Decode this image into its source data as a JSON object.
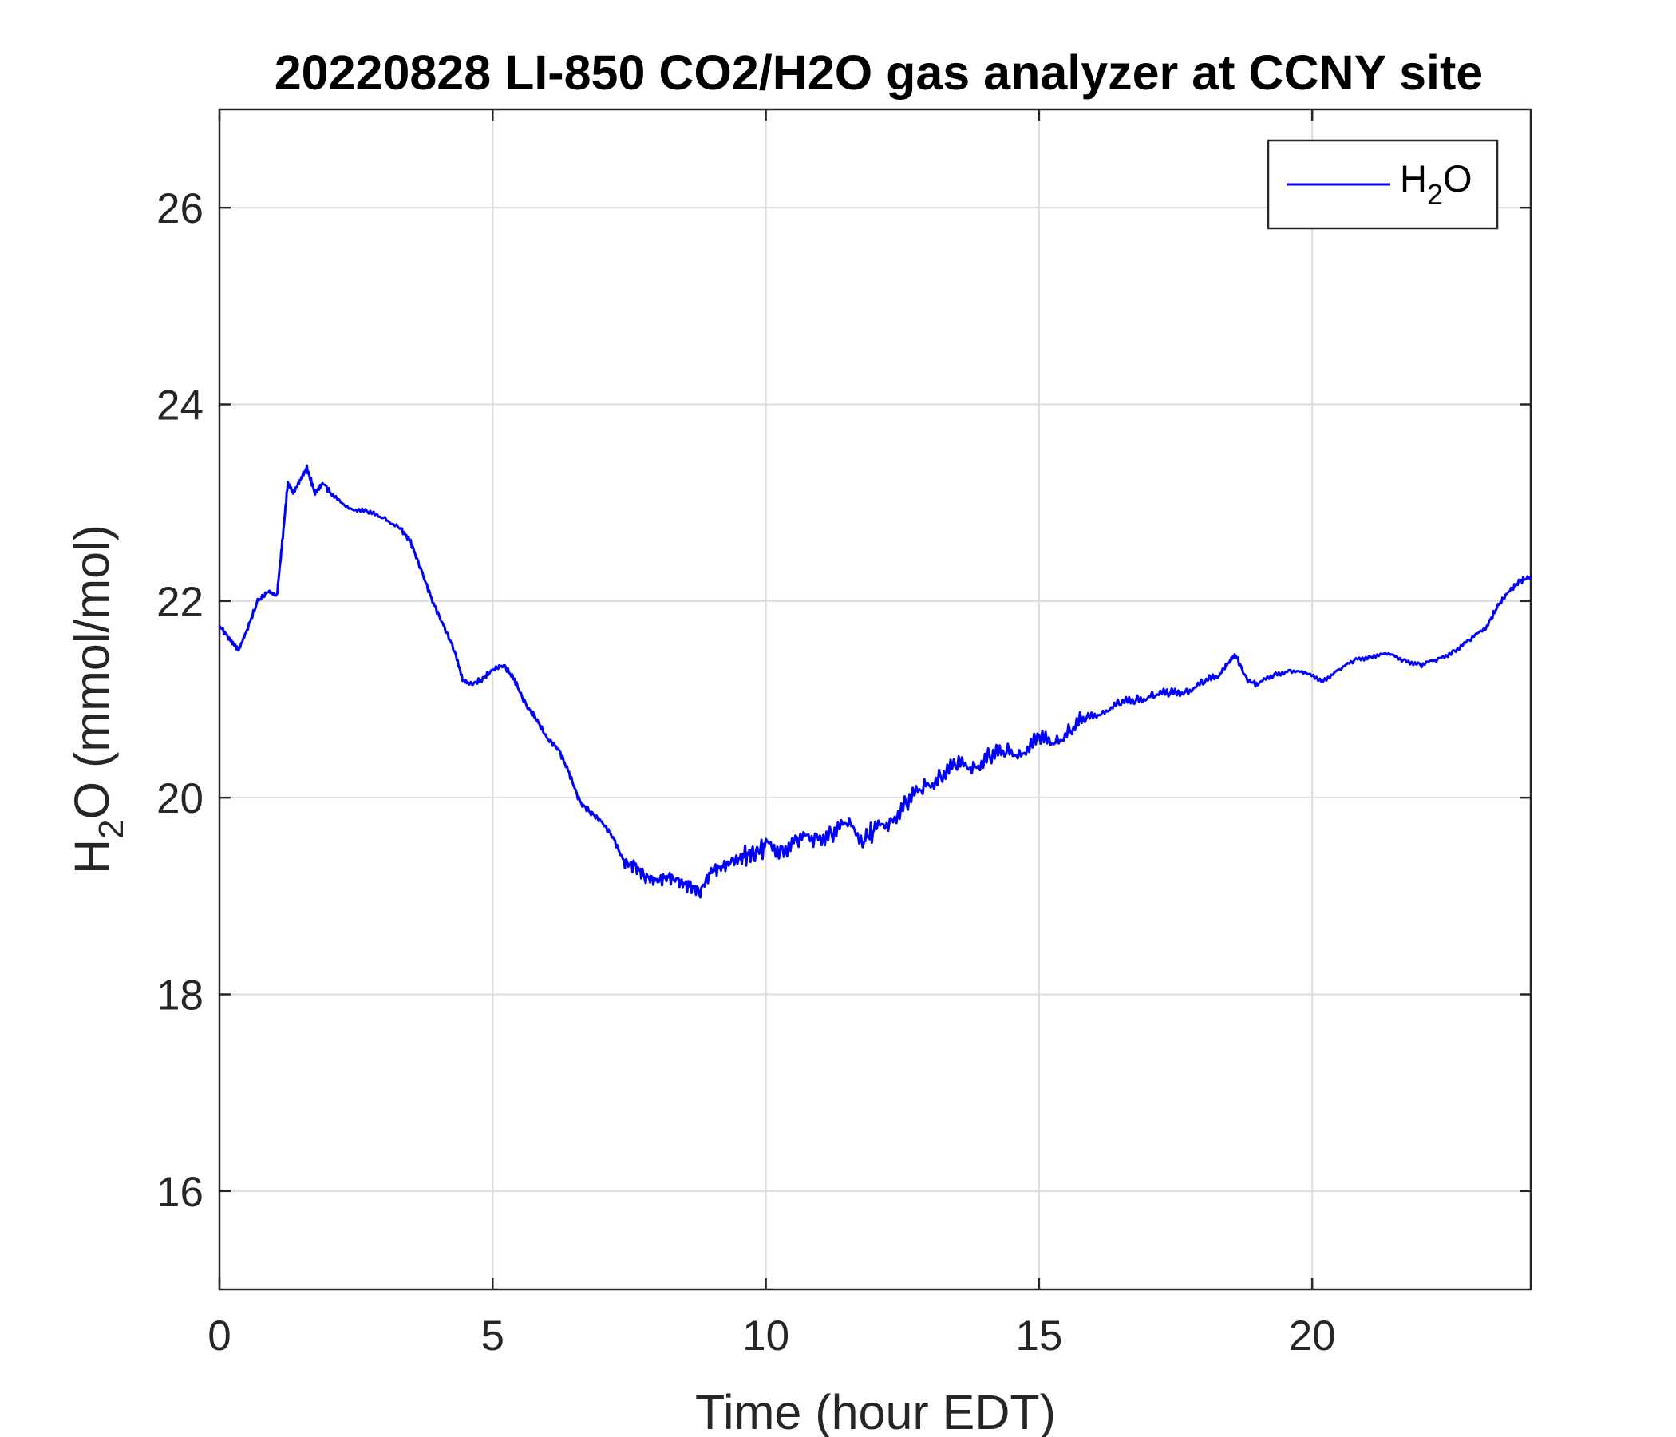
{
  "chart_data": {
    "type": "line",
    "title": "20220828 LI-850 CO2/H2O gas analyzer at CCNY site",
    "xlabel": "Time (hour EDT)",
    "ylabel": {
      "main": "H",
      "sub": "2",
      "rest": "O (mmol/mol)"
    },
    "xlim": [
      0,
      24
    ],
    "ylim": [
      15,
      27
    ],
    "xticks": [
      0,
      5,
      10,
      15,
      20
    ],
    "xtick_labels": [
      "0",
      "5",
      "10",
      "15",
      "20"
    ],
    "yticks": [
      16,
      18,
      20,
      22,
      24,
      26
    ],
    "ytick_labels": [
      "16",
      "18",
      "20",
      "22",
      "24",
      "26"
    ],
    "grid": true,
    "legend_position": "top-right",
    "series": [
      {
        "name": {
          "main": "H",
          "sub": "2",
          "rest": "O"
        },
        "color": "#0000ff",
        "x": [
          0,
          0.2,
          0.35,
          0.5,
          0.7,
          0.9,
          1.05,
          1.15,
          1.25,
          1.35,
          1.5,
          1.6,
          1.75,
          1.9,
          2.1,
          2.4,
          2.7,
          3.0,
          3.3,
          3.5,
          3.7,
          3.9,
          4.1,
          4.3,
          4.45,
          4.6,
          4.8,
          5.0,
          5.2,
          5.4,
          5.6,
          5.8,
          6.0,
          6.2,
          6.4,
          6.6,
          6.8,
          7.0,
          7.2,
          7.4,
          7.6,
          7.8,
          8.0,
          8.2,
          8.4,
          8.6,
          8.8,
          9.0,
          9.2,
          9.4,
          9.6,
          9.8,
          10.0,
          10.3,
          10.6,
          10.9,
          11.2,
          11.5,
          11.8,
          12.0,
          12.3,
          12.6,
          12.9,
          13.2,
          13.5,
          13.8,
          14.1,
          14.4,
          14.7,
          15.0,
          15.3,
          15.6,
          15.9,
          16.2,
          16.5,
          16.8,
          17.1,
          17.4,
          17.7,
          18.0,
          18.3,
          18.5,
          18.6,
          18.8,
          19.0,
          19.3,
          19.6,
          19.9,
          20.2,
          20.5,
          20.8,
          21.1,
          21.4,
          21.7,
          22.0,
          22.3,
          22.6,
          22.9,
          23.2,
          23.4,
          23.6,
          23.8,
          24.0
        ],
        "values": [
          21.75,
          21.6,
          21.5,
          21.7,
          22.0,
          22.1,
          22.05,
          22.6,
          23.2,
          23.1,
          23.25,
          23.35,
          23.1,
          23.2,
          23.05,
          22.95,
          22.9,
          22.85,
          22.75,
          22.6,
          22.3,
          22.0,
          21.75,
          21.5,
          21.2,
          21.15,
          21.2,
          21.3,
          21.35,
          21.2,
          20.95,
          20.8,
          20.6,
          20.5,
          20.25,
          19.95,
          19.85,
          19.75,
          19.6,
          19.35,
          19.3,
          19.2,
          19.15,
          19.2,
          19.15,
          19.1,
          19.05,
          19.25,
          19.3,
          19.35,
          19.4,
          19.45,
          19.5,
          19.5,
          19.55,
          19.6,
          19.65,
          19.7,
          19.6,
          19.65,
          19.8,
          19.95,
          20.1,
          20.25,
          20.3,
          20.35,
          20.4,
          20.45,
          20.5,
          20.55,
          20.6,
          20.7,
          20.8,
          20.9,
          20.95,
          21.0,
          21.05,
          21.05,
          21.1,
          21.15,
          21.25,
          21.4,
          21.45,
          21.2,
          21.15,
          21.25,
          21.3,
          21.25,
          21.2,
          21.3,
          21.4,
          21.45,
          21.45,
          21.4,
          21.35,
          21.4,
          21.5,
          21.6,
          21.75,
          21.95,
          22.1,
          22.2,
          22.25
        ]
      }
    ]
  }
}
